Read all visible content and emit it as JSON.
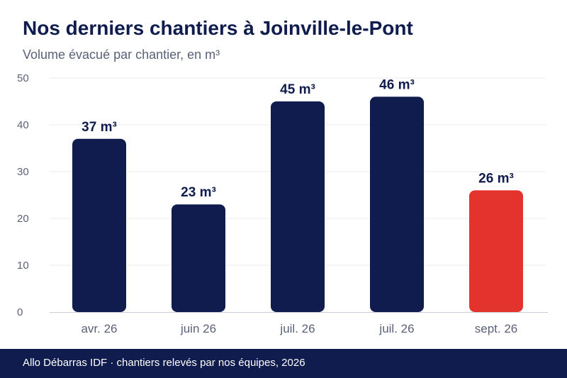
{
  "header": {
    "title": "Nos derniers chantiers à Joinville-le-Pont",
    "subtitle": "Volume évacué par chantier, en m³"
  },
  "footer": {
    "source": "Allo Débarras IDF · chantiers relevés par nos équipes, 2026"
  },
  "chart_data": {
    "type": "bar",
    "title": "Nos derniers chantiers à Joinville-le-Pont",
    "subtitle": "Volume évacué par chantier, en m³",
    "categories": [
      "avr. 26",
      "juin 26",
      "juil. 26",
      "juil. 26",
      "sept. 26"
    ],
    "values": [
      37,
      23,
      45,
      46,
      26
    ],
    "value_labels": [
      "37 m³",
      "23 m³",
      "45 m³",
      "46 m³",
      "26 m³"
    ],
    "ylim": [
      0,
      50
    ],
    "yticks": [
      0,
      10,
      20,
      30,
      40,
      50
    ],
    "grid": true,
    "highlight_index": 4,
    "colors": {
      "bar": "#0f1c4d",
      "highlight": "#e4332d",
      "grid": "#eceef2",
      "axis": "#c9ccd6",
      "tick_text": "#5a6178",
      "label_text": "#0f1c4d"
    }
  }
}
